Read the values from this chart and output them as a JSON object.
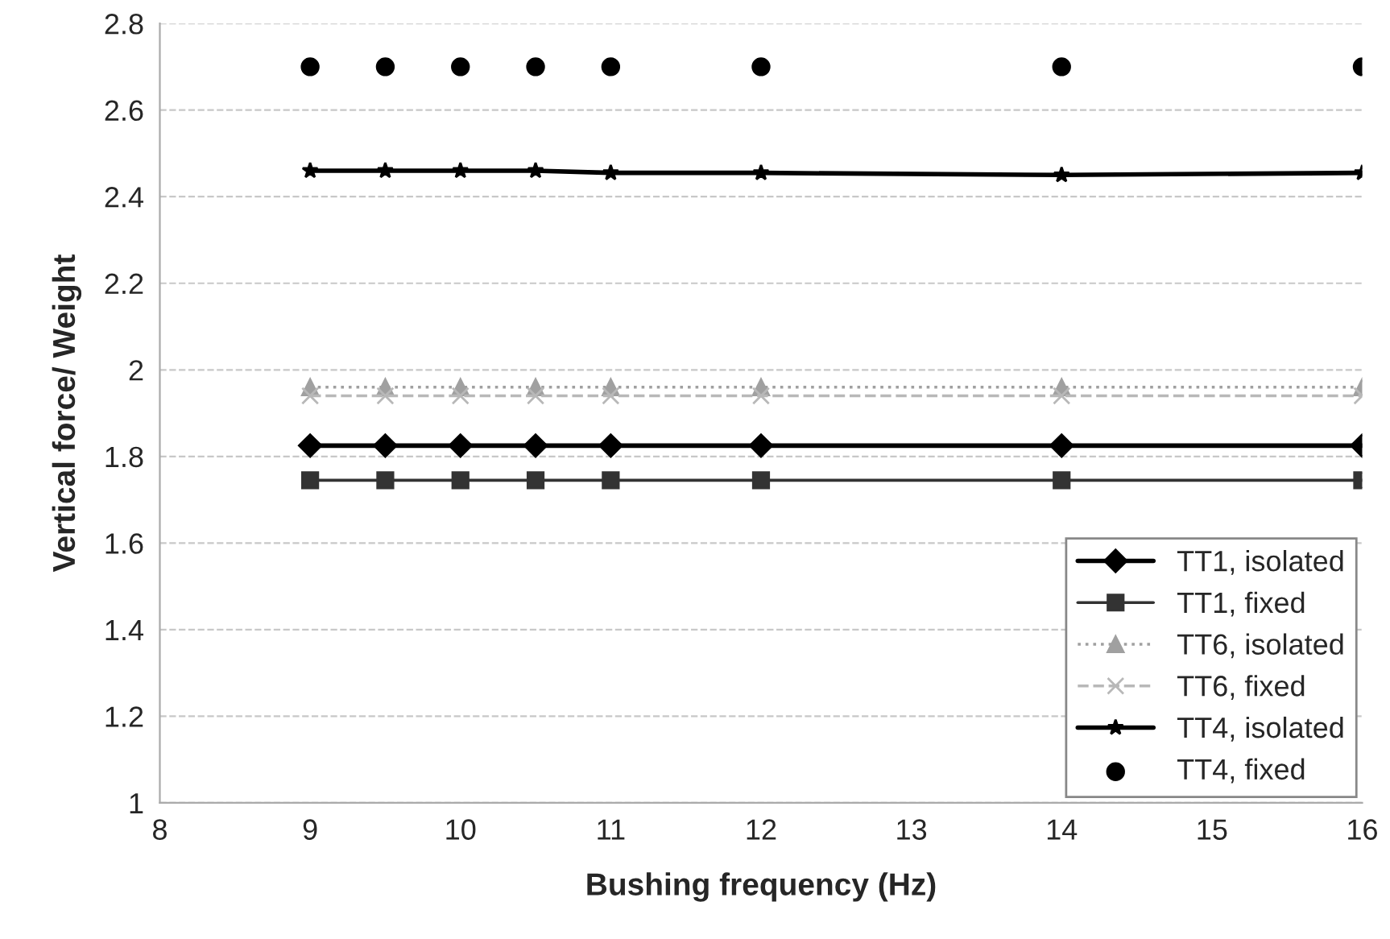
{
  "chart_data": {
    "type": "line",
    "xlabel": "Bushing frequency (Hz)",
    "ylabel": "Vertical force/ Weight",
    "x": [
      9,
      9.5,
      10,
      10.5,
      11,
      12,
      14,
      16
    ],
    "series": [
      {
        "name": "TT1, isolated",
        "color": "#000000",
        "marker": "diamond",
        "line_style": "solid",
        "values": [
          1.825,
          1.825,
          1.825,
          1.825,
          1.825,
          1.825,
          1.825,
          1.825
        ]
      },
      {
        "name": "TT1, fixed",
        "color": "#333333",
        "marker": "square",
        "line_style": "solid",
        "values": [
          1.745,
          1.745,
          1.745,
          1.745,
          1.745,
          1.745,
          1.745,
          1.745
        ]
      },
      {
        "name": "TT6, isolated",
        "color": "#a0a0a0",
        "marker": "triangle",
        "line_style": "dotted",
        "values": [
          1.96,
          1.96,
          1.96,
          1.96,
          1.96,
          1.96,
          1.96,
          1.96
        ]
      },
      {
        "name": "TT6, fixed",
        "color": "#b8b8b8",
        "marker": "cross",
        "line_style": "dashed",
        "values": [
          1.94,
          1.94,
          1.94,
          1.94,
          1.94,
          1.94,
          1.94,
          1.94
        ]
      },
      {
        "name": "TT4, isolated",
        "color": "#000000",
        "marker": "star",
        "line_style": "solid",
        "values": [
          2.46,
          2.46,
          2.46,
          2.46,
          2.455,
          2.455,
          2.45,
          2.455
        ]
      },
      {
        "name": "TT4, fixed",
        "color": "#000000",
        "type": "scatter",
        "marker": "circle",
        "values": [
          2.7,
          2.7,
          2.7,
          2.7,
          2.7,
          2.7,
          2.7,
          2.7
        ]
      }
    ],
    "xlim": [
      8,
      16
    ],
    "ylim": [
      1,
      2.8
    ],
    "xticks": [
      8,
      9,
      10,
      11,
      12,
      13,
      14,
      15,
      16
    ],
    "yticks": [
      1,
      1.2,
      1.4,
      1.6,
      1.8,
      2,
      2.2,
      2.4,
      2.6,
      2.8
    ],
    "grid": "y",
    "legend": "bottom right"
  }
}
